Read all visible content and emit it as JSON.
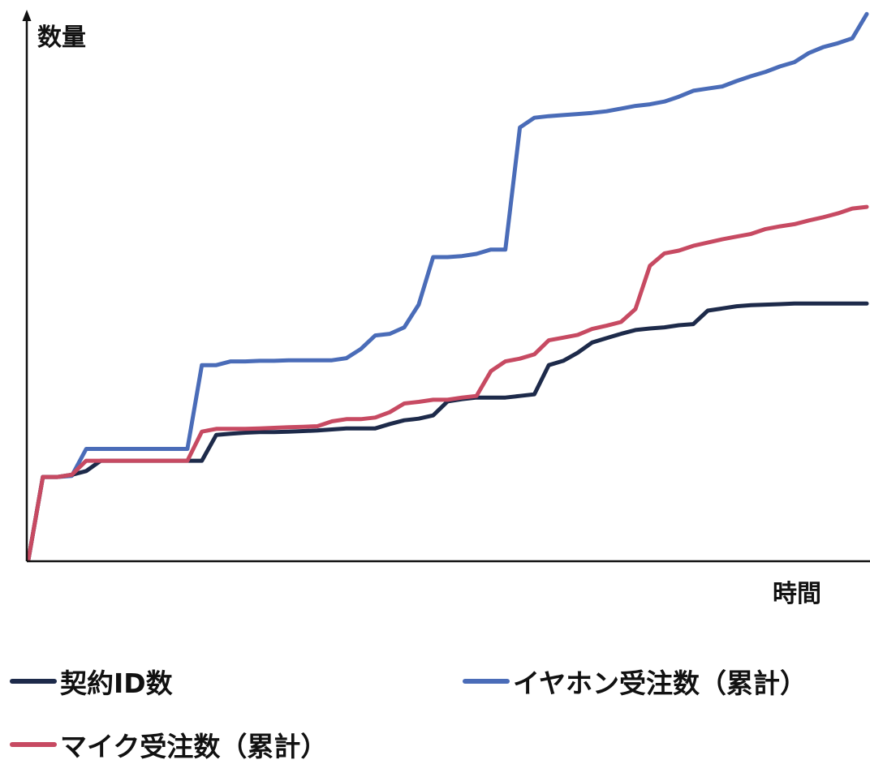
{
  "chart_data": {
    "type": "line",
    "xlabel": "時間",
    "ylabel": "数量",
    "grid": false,
    "legend_position": "bottom",
    "x": [
      0,
      1,
      2,
      3,
      4,
      5,
      6,
      7,
      8,
      9,
      10,
      11,
      12,
      13,
      14,
      15,
      16,
      17,
      18,
      19,
      20,
      21,
      22,
      23,
      24,
      25,
      26,
      27,
      28,
      29,
      30,
      31,
      32,
      33,
      34,
      35,
      36,
      37,
      38,
      39,
      40,
      41,
      42,
      43,
      44,
      45,
      46,
      47,
      48,
      49,
      50,
      51,
      52,
      53,
      54,
      55,
      56,
      57,
      58
    ],
    "ylim": [
      0,
      100
    ],
    "series": [
      {
        "name": "契約ID数",
        "color": "#1d2a4a",
        "values": [
          0,
          15.3,
          15.3,
          15.7,
          16.4,
          18.3,
          18.3,
          18.3,
          18.3,
          18.3,
          18.3,
          18.3,
          18.3,
          23.1,
          23.3,
          23.5,
          23.6,
          23.6,
          23.7,
          23.8,
          23.9,
          24.1,
          24.3,
          24.3,
          24.3,
          25.1,
          25.8,
          26.1,
          26.7,
          29.3,
          29.7,
          30,
          30,
          30,
          30.3,
          30.6,
          36,
          36.8,
          38.3,
          40.2,
          41,
          41.8,
          42.5,
          42.8,
          43,
          43.4,
          43.6,
          46.1,
          46.5,
          46.9,
          47.1,
          47.2,
          47.3,
          47.4,
          47.4,
          47.4,
          47.4,
          47.4,
          47.4
        ]
      },
      {
        "name": "イヤホン受注数（累計）",
        "color": "#4a6cb8",
        "values": [
          0,
          15.3,
          15.3,
          15.5,
          20.5,
          20.5,
          20.5,
          20.5,
          20.5,
          20.5,
          20.5,
          20.5,
          36,
          36,
          36.7,
          36.7,
          36.8,
          36.8,
          36.9,
          36.9,
          36.9,
          36.9,
          37.3,
          39,
          41.5,
          41.8,
          43,
          47.2,
          56,
          56,
          56.2,
          56.6,
          57.4,
          57.4,
          80,
          81.8,
          82.1,
          82.3,
          82.5,
          82.7,
          83,
          83.5,
          84,
          84.3,
          84.8,
          85.7,
          86.8,
          87.2,
          87.6,
          88.6,
          89.5,
          90.3,
          91.3,
          92.1,
          93.8,
          94.9,
          95.6,
          96.5,
          101
        ]
      },
      {
        "name": "マイク受注数（累計）",
        "color": "#c74a62",
        "values": [
          0,
          15.3,
          15.3,
          15.7,
          18.3,
          18.3,
          18.3,
          18.3,
          18.3,
          18.3,
          18.3,
          18.3,
          23.7,
          24.2,
          24.2,
          24.2,
          24.3,
          24.4,
          24.5,
          24.6,
          24.7,
          25.6,
          26,
          26,
          26.3,
          27.3,
          28.9,
          29.2,
          29.6,
          29.6,
          30,
          30.3,
          34.9,
          36.7,
          37.2,
          38,
          40.6,
          41.1,
          41.6,
          42.7,
          43.3,
          44,
          46.4,
          54.4,
          56.7,
          57.2,
          58.1,
          58.7,
          59.3,
          59.8,
          60.3,
          61.2,
          61.7,
          62.1,
          62.8,
          63.4,
          64.1,
          65,
          65.3
        ]
      }
    ]
  }
}
